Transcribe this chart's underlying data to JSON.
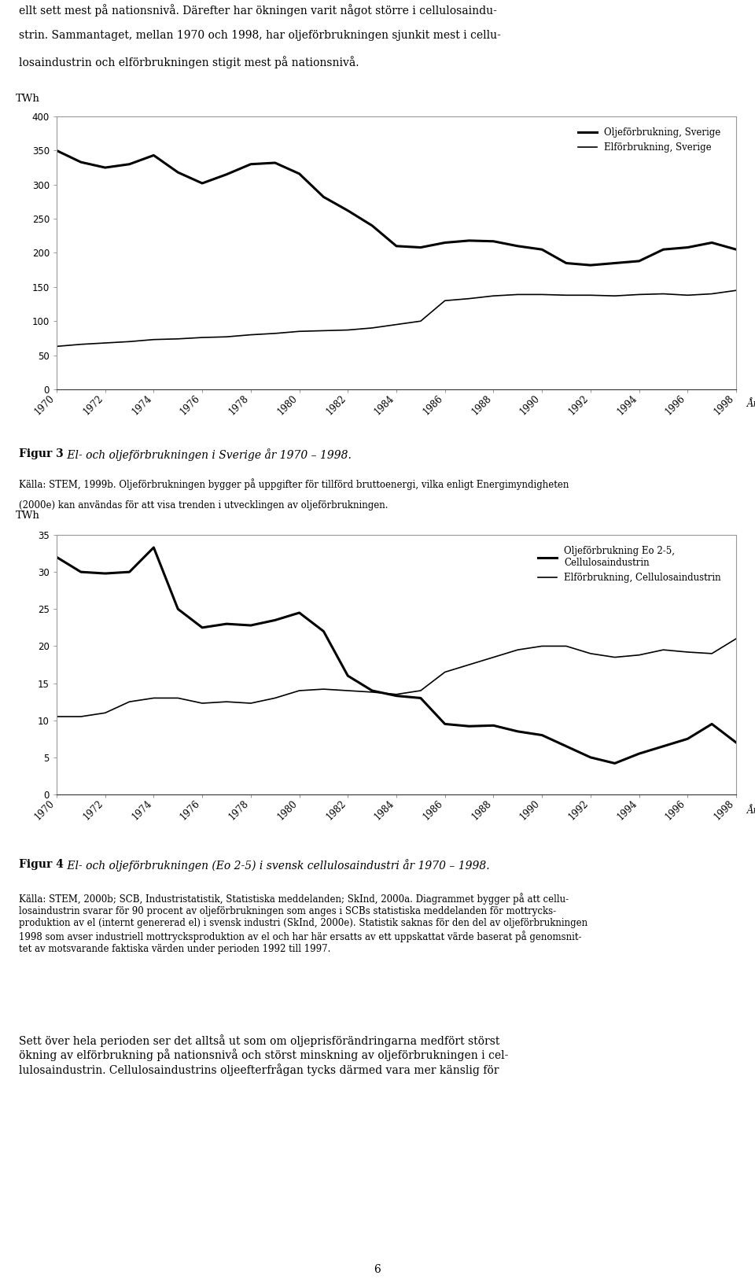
{
  "chart1": {
    "ylabel": "TWh",
    "xlabel": "År",
    "ylim": [
      0,
      400
    ],
    "yticks": [
      0,
      50,
      100,
      150,
      200,
      250,
      300,
      350,
      400
    ],
    "years": [
      1970,
      1971,
      1972,
      1973,
      1974,
      1975,
      1976,
      1977,
      1978,
      1979,
      1980,
      1981,
      1982,
      1983,
      1984,
      1985,
      1986,
      1987,
      1988,
      1989,
      1990,
      1991,
      1992,
      1993,
      1994,
      1995,
      1996,
      1997,
      1998
    ],
    "olje": [
      350,
      333,
      325,
      330,
      343,
      318,
      302,
      315,
      330,
      332,
      316,
      282,
      262,
      240,
      210,
      208,
      215,
      218,
      217,
      210,
      205,
      185,
      182,
      185,
      188,
      205,
      208,
      215,
      205
    ],
    "el": [
      63,
      66,
      68,
      70,
      73,
      74,
      76,
      77,
      80,
      82,
      85,
      86,
      87,
      90,
      95,
      100,
      130,
      133,
      137,
      139,
      139,
      138,
      138,
      137,
      139,
      140,
      138,
      140,
      145
    ],
    "legend1": "Oljeförbrukning, Sverige",
    "legend2": "Elförbrukning, Sverige",
    "fig3_bold": "Figur 3",
    "fig3_italic": " El- och oljeförbrukningen i Sverige år 1970 – 1998."
  },
  "chart2": {
    "ylabel": "TWh",
    "xlabel": "År",
    "ylim": [
      0,
      35
    ],
    "yticks": [
      0,
      5,
      10,
      15,
      20,
      25,
      30,
      35
    ],
    "years": [
      1970,
      1971,
      1972,
      1973,
      1974,
      1975,
      1976,
      1977,
      1978,
      1979,
      1980,
      1981,
      1982,
      1983,
      1984,
      1985,
      1986,
      1987,
      1988,
      1989,
      1990,
      1991,
      1992,
      1993,
      1994,
      1995,
      1996,
      1997,
      1998
    ],
    "olje": [
      32,
      30,
      29.8,
      30,
      33.3,
      25,
      22.5,
      23,
      22.8,
      23.5,
      24.5,
      22,
      16,
      14.0,
      13.3,
      13,
      9.5,
      9.2,
      9.3,
      8.5,
      8.0,
      6.5,
      5.0,
      4.2,
      5.5,
      6.5,
      7.5,
      9.5,
      7.0
    ],
    "el": [
      10.5,
      10.5,
      11.0,
      12.5,
      13.0,
      13.0,
      12.3,
      12.5,
      12.3,
      13.0,
      14.0,
      14.2,
      14.0,
      13.8,
      13.5,
      14.0,
      16.5,
      17.5,
      18.5,
      19.5,
      20.0,
      20.0,
      19.0,
      18.5,
      18.8,
      19.5,
      19.2,
      19.0,
      21.0
    ],
    "legend1": "Oljeförbrukning Eo 2-5,\nCellulosaindustrin",
    "legend2": "Elförbrukning, Cellulosaindustrin",
    "fig4_bold": "Figur 4",
    "fig4_italic": " El- och oljeförbrukningen (Eo 2-5) i svensk cellulosaindustri år 1970 – 1998."
  },
  "text_blocks": {
    "para1_line1": "ellt sett mest på nationsnivå. Därefter har ökningen varit något större i cellulosaindu-",
    "para1_line2": "strin. Sammantaget, mellan 1970 och 1998, har oljeförbrukningen sjunkit mest i cellu-",
    "para1_line3": "losaindustrin och elförbrukningen stigit mest på nationsnivå.",
    "fig3_source_line1": "Källa: STEM, 1999b. Oljeförbrukningen bygger på uppgifter för tillförd bruttoenergi, vilka enligt Energimyndigheten",
    "fig3_source_line2": "(2000e) kan användas för att visa trenden i utvecklingen av oljeförbrukningen.",
    "fig4_source": "Källa: STEM, 2000b; SCB, Industristatistik, Statistiska meddelanden; SkInd, 2000a. Diagrammet bygger på att cellu-\nlosaindustrin svarar för 90 procent av oljeförbrukningen som anges i SCBs statistiska meddelanden för mottrycks-\nproduktion av el (internt genererad el) i svensk industri (SkInd, 2000e). Statistik saknas för den del av oljeförbrukningen\n1998 som avser industriell mottrycksproduktion av el och har här ersatts av ett uppskattat värde baserat på genomsnit-\ntet av motsvarande faktiska värden under perioden 1992 till 1997.",
    "para2": "Sett över hela perioden ser det alltså ut som om oljeprisförändringarna medfört störst\nökning av elförbrukning på nationsnivå och störst minskning av oljeförbrukningen i cel-\nlulosaindustrin. Cellulosaindustrins oljeefterfrågan tycks därmed vara mer känslig för"
  },
  "page_number": "6",
  "line_color": "#000000",
  "thick_lw": 2.2,
  "thin_lw": 1.2,
  "background_color": "#ffffff",
  "font_size_axis": 8.5,
  "font_size_ylabel": 9.5,
  "font_size_legend": 8.5,
  "font_size_caption_title": 10,
  "font_size_caption_body": 8.5,
  "font_size_text": 10,
  "font_size_page": 10
}
